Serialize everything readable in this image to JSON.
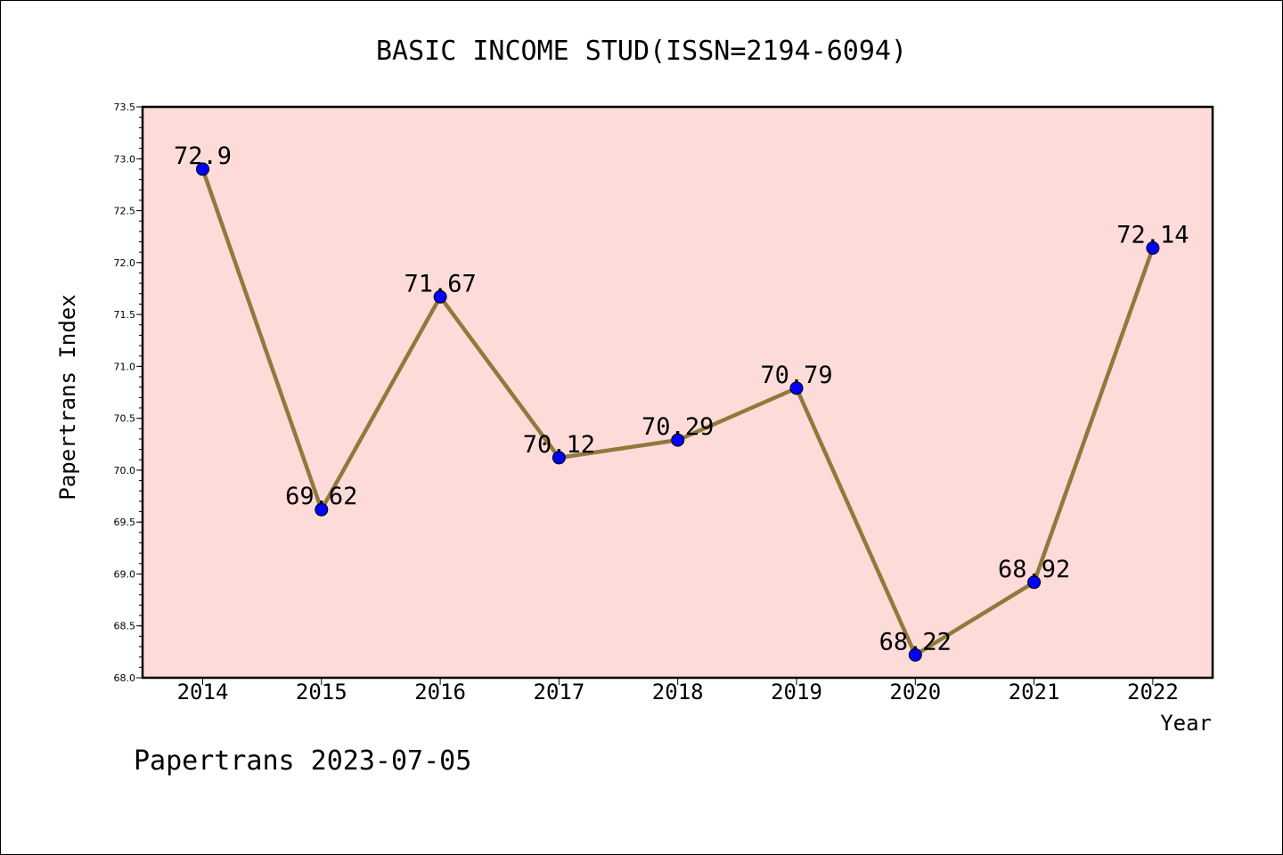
{
  "chart_data": {
    "type": "line",
    "title": "BASIC INCOME STUD(ISSN=2194-6094)",
    "xlabel": "Year",
    "ylabel": "Papertrans Index",
    "categories": [
      "2014",
      "2015",
      "2016",
      "2017",
      "2018",
      "2019",
      "2020",
      "2021",
      "2022"
    ],
    "series": [
      {
        "values": [
          72.9,
          69.62,
          71.67,
          70.12,
          70.29,
          70.79,
          68.22,
          68.92,
          72.14
        ],
        "labels": [
          "72.9",
          "69.62",
          "71.67",
          "70.12",
          "70.29",
          "70.79",
          "68.22",
          "68.92",
          "72.14"
        ]
      }
    ],
    "ylim": [
      68.0,
      73.5
    ],
    "yticks": [
      "68.0",
      "68.5",
      "69.0",
      "69.5",
      "70.0",
      "70.5",
      "71.0",
      "71.5",
      "72.0",
      "72.5",
      "73.0",
      "73.5"
    ],
    "grid": false,
    "colors": {
      "plot_background": "#fddbd9",
      "line": "#8f7a3c",
      "marker": "#0000ff"
    }
  },
  "footer": "Papertrans 2023-07-05"
}
